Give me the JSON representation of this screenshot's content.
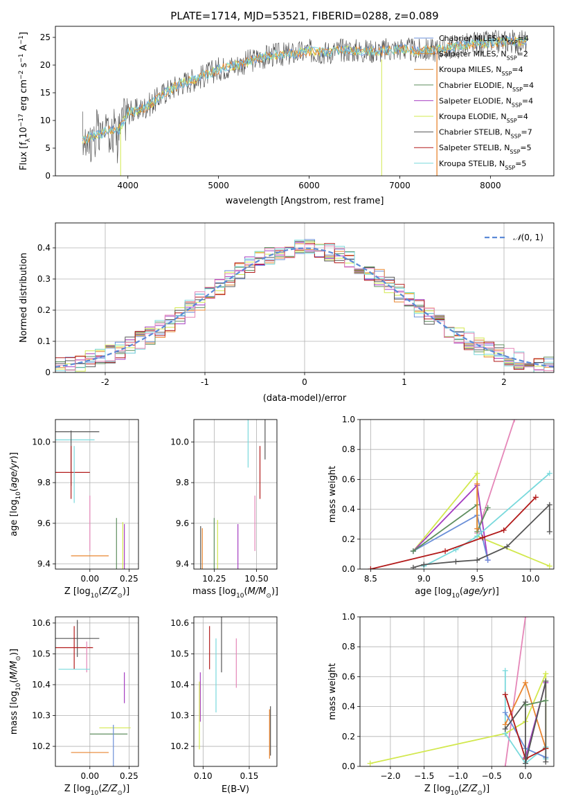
{
  "title": "PLATE=1714, MJD=53521, FIBERID=0288, z=0.089",
  "palette": {
    "chabrier_miles": "#6a8fd8",
    "salpeter_miles": "#e8852f",
    "kroupa_miles": "#d9862c",
    "chabrier_elodie": "#5e8e5e",
    "salpeter_elodie": "#a43cc0",
    "kroupa_elodie": "#d2e84d",
    "chabrier_stelib": "#555555",
    "salpeter_stelib": "#b21a1a",
    "kroupa_stelib": "#79d9dc",
    "pink": "#e586b8",
    "orange": "#e8852f",
    "gaussian": "#5b8ad6"
  },
  "legend": [
    {
      "text": "Chabrier MILES, N_SSP=4",
      "main": "Chabrier MILES, N",
      "sub": "SSP",
      "suffix": "=4",
      "color": "#6a8fd8"
    },
    {
      "text": "Salpeter MILES, N_SSP=2",
      "main": "Salpeter MILES, N",
      "sub": "SSP",
      "suffix": "=2",
      "color": "#e8852f"
    },
    {
      "text": "Kroupa MILES, N_SSP=4",
      "main": "Kroupa MILES, N",
      "sub": "SSP",
      "suffix": "=4",
      "color": "#d9862c"
    },
    {
      "text": "Chabrier ELODIE, N_SSP=4",
      "main": "Chabrier ELODIE, N",
      "sub": "SSP",
      "suffix": "=4",
      "color": "#5e8e5e"
    },
    {
      "text": "Salpeter ELODIE, N_SSP=4",
      "main": "Salpeter ELODIE, N",
      "sub": "SSP",
      "suffix": "=4",
      "color": "#a43cc0"
    },
    {
      "text": "Kroupa ELODIE, N_SSP=4",
      "main": "Kroupa ELODIE, N",
      "sub": "SSP",
      "suffix": "=4",
      "color": "#d2e84d"
    },
    {
      "text": "Chabrier STELIB, N_SSP=7",
      "main": "Chabrier STELIB, N",
      "sub": "SSP",
      "suffix": "=7",
      "color": "#555555"
    },
    {
      "text": "Salpeter STELIB, N_SSP=5",
      "main": "Salpeter STELIB, N",
      "sub": "SSP",
      "suffix": "=5",
      "color": "#b21a1a"
    },
    {
      "text": "Kroupa STELIB, N_SSP=5",
      "main": "Kroupa STELIB, N",
      "sub": "SSP",
      "suffix": "=5",
      "color": "#79d9dc"
    }
  ],
  "chart_data": [
    {
      "id": "spectrum",
      "type": "line",
      "title": "PLATE=1714, MJD=53521, FIBERID=0288, z=0.089",
      "xlabel": "wavelength [Angstrom, rest frame]",
      "ylabel": "Flux [f_λ 10^-17 erg cm^-2 s^-1 A^-1]",
      "xlim": [
        3200,
        8700
      ],
      "ylim": [
        0,
        27
      ],
      "xticks": [
        4000,
        5000,
        6000,
        7000,
        8000
      ],
      "yticks": [
        0,
        5,
        10,
        15,
        20,
        25
      ],
      "grid": false,
      "legend_position": "upper right",
      "continuum": [
        [
          3500,
          6.5
        ],
        [
          3700,
          7.5
        ],
        [
          3800,
          8.5
        ],
        [
          3900,
          8.2
        ],
        [
          4000,
          11.5
        ],
        [
          4100,
          11.8
        ],
        [
          4200,
          12.5
        ],
        [
          4300,
          13.5
        ],
        [
          4400,
          15.0
        ],
        [
          4600,
          16.8
        ],
        [
          4800,
          17.8
        ],
        [
          5000,
          19.3
        ],
        [
          5200,
          20.0
        ],
        [
          5400,
          21.0
        ],
        [
          5600,
          21.8
        ],
        [
          5800,
          22.0
        ],
        [
          6000,
          22.5
        ],
        [
          6200,
          22.3
        ],
        [
          6400,
          22.8
        ],
        [
          6600,
          22.5
        ],
        [
          6800,
          22.6
        ],
        [
          7000,
          23.0
        ],
        [
          7200,
          22.5
        ],
        [
          7400,
          22.8
        ],
        [
          7600,
          23.3
        ],
        [
          7800,
          23.8
        ],
        [
          8000,
          24.0
        ],
        [
          8200,
          24.3
        ],
        [
          8400,
          24.2
        ]
      ]
    },
    {
      "id": "residuals",
      "type": "histogram",
      "xlabel": "(data-model)/error",
      "ylabel": "Normed distribution",
      "xlim": [
        -2.5,
        2.5
      ],
      "ylim": [
        0,
        0.48
      ],
      "xticks": [
        -2,
        -1,
        0,
        1,
        2
      ],
      "yticks": [
        0.0,
        0.1,
        0.2,
        0.3,
        0.4
      ],
      "grid": true,
      "legend": "𝒩(0,1)",
      "legend_position": "upper right",
      "bin_width": 0.1
    },
    {
      "id": "age_vs_Z",
      "type": "scatter",
      "xlabel": "Z [log10(Z/Z☉)]",
      "ylabel": "age [log10(age/yr)]",
      "xlim": [
        -0.22,
        0.31
      ],
      "ylim": [
        9.375,
        10.11
      ],
      "xticks": [
        0.0,
        0.25
      ],
      "xticklabels": [
        "0.00",
        "0.25"
      ],
      "yticks": [
        9.4,
        9.6,
        9.8,
        10.0
      ],
      "yticklabels": [
        "9.4",
        "9.6",
        "9.8",
        "10.0"
      ],
      "grid": true,
      "points": [
        {
          "x": -0.08,
          "xe": 0.14,
          "y": 10.05,
          "ye": 0.0,
          "c": "#555555"
        },
        {
          "x": -0.1,
          "xe": 0.13,
          "y": 10.01,
          "ye": 0.0,
          "c": "#79d9dc"
        },
        {
          "x": -0.12,
          "xe": 0.0,
          "y": 9.92,
          "ye": 0.0,
          "c": "#555555"
        },
        {
          "x": -0.12,
          "xe": 0.12,
          "y": 9.85,
          "ye": 0.13,
          "c": "#b21a1a"
        },
        {
          "x": -0.1,
          "xe": 0.0,
          "y": 9.84,
          "ye": 0.14,
          "c": "#79d9dc"
        },
        {
          "x": 0.0,
          "xe": 0.0,
          "y": 9.6,
          "ye": 0.0,
          "c": "#e586b8"
        },
        {
          "x": 0.0,
          "xe": 0.12,
          "y": 9.44,
          "ye": 0.0,
          "c": "#e8852f"
        },
        {
          "x": 0.17,
          "xe": 0.0,
          "y": 9.49,
          "ye": 0.0,
          "c": "#5e8e5e"
        },
        {
          "x": 0.21,
          "xe": 0.0,
          "y": 9.47,
          "ye": 0.0,
          "c": "#d2e84d"
        },
        {
          "x": 0.22,
          "xe": 0.0,
          "y": 9.46,
          "ye": 0.0,
          "c": "#a43cc0"
        }
      ]
    },
    {
      "id": "age_vs_mass",
      "type": "scatter",
      "xlabel": "mass [log10(M/M☉)]",
      "ylabel": "",
      "xlim": [
        10.13,
        10.62
      ],
      "ylim": [
        9.375,
        10.11
      ],
      "xticks": [
        10.25,
        10.5
      ],
      "xticklabels": [
        "10.25",
        "10.50"
      ],
      "yticks": [
        9.4,
        9.6,
        9.8,
        10.0
      ],
      "yticklabels": [
        "9.4",
        "9.6",
        "9.8",
        "10.0"
      ],
      "grid": true,
      "points": [
        {
          "x": 10.55,
          "xe": 0.0,
          "y": 10.05,
          "ye": 0.0,
          "c": "#555555"
        },
        {
          "x": 10.45,
          "xe": 0.0,
          "y": 10.01,
          "ye": 0.0,
          "c": "#79d9dc"
        },
        {
          "x": 10.52,
          "xe": 0.0,
          "y": 9.85,
          "ye": 0.13,
          "c": "#b21a1a"
        },
        {
          "x": 10.49,
          "xe": 0.0,
          "y": 9.6,
          "ye": 0.0,
          "c": "#e586b8"
        },
        {
          "x": 10.18,
          "xe": 0.0,
          "y": 9.44,
          "ye": 0.0,
          "c": "#e8852f"
        },
        {
          "x": 10.25,
          "xe": 0.0,
          "y": 9.49,
          "ye": 0.0,
          "c": "#5e8e5e"
        },
        {
          "x": 10.27,
          "xe": 0.0,
          "y": 9.48,
          "ye": 0.0,
          "c": "#d2e84d"
        },
        {
          "x": 10.39,
          "xe": 0.0,
          "y": 9.46,
          "ye": 0.0,
          "c": "#a43cc0"
        },
        {
          "x": 10.17,
          "xe": 0.0,
          "y": 9.45,
          "ye": 0.0,
          "c": "#555555"
        }
      ]
    },
    {
      "id": "massweight_vs_age",
      "type": "line",
      "xlabel": "age [log10(age/yr)]",
      "ylabel": "mass weight",
      "xlim": [
        8.4,
        10.22
      ],
      "ylim": [
        0,
        1
      ],
      "xticks": [
        8.5,
        9.0,
        9.5,
        10.0
      ],
      "xticklabels": [
        "8.5",
        "9.0",
        "9.5",
        "10.0"
      ],
      "yticks": [
        0,
        0.2,
        0.4,
        0.6,
        0.8,
        1.0
      ],
      "yticklabels": [
        "0.0",
        "0.2",
        "0.4",
        "0.6",
        "0.8",
        "1.0"
      ],
      "grid": true,
      "series": [
        {
          "c": "#e586b8",
          "pts": [
            [
              9.5,
              0.24
            ],
            [
              9.85,
              1.0
            ]
          ]
        },
        {
          "c": "#d2e84d",
          "pts": [
            [
              8.9,
              0.12
            ],
            [
              9.5,
              0.64
            ],
            [
              9.5,
              0.22
            ],
            [
              10.18,
              0.02
            ]
          ]
        },
        {
          "c": "#a43cc0",
          "pts": [
            [
              8.9,
              0.12
            ],
            [
              9.5,
              0.56
            ],
            [
              9.6,
              0.06
            ]
          ]
        },
        {
          "c": "#6a8fd8",
          "pts": [
            [
              8.9,
              0.12
            ],
            [
              9.5,
              0.36
            ],
            [
              9.6,
              0.06
            ]
          ]
        },
        {
          "c": "#5e8e5e",
          "pts": [
            [
              8.9,
              0.12
            ],
            [
              9.5,
              0.43
            ],
            [
              9.5,
              0.25
            ],
            [
              9.6,
              0.41
            ]
          ]
        },
        {
          "c": "#e8852f",
          "pts": [
            [
              9.5,
              0.27
            ],
            [
              9.5,
              0.57
            ]
          ]
        },
        {
          "c": "#79d9dc",
          "pts": [
            [
              9.0,
              0.02
            ],
            [
              9.3,
              0.13
            ],
            [
              9.5,
              0.22
            ],
            [
              10.18,
              0.64
            ]
          ]
        },
        {
          "c": "#b21a1a",
          "pts": [
            [
              8.5,
              0.0
            ],
            [
              9.2,
              0.12
            ],
            [
              9.55,
              0.21
            ],
            [
              9.75,
              0.26
            ],
            [
              10.05,
              0.48
            ]
          ]
        },
        {
          "c": "#555555",
          "pts": [
            [
              8.9,
              0.01
            ],
            [
              9.0,
              0.03
            ],
            [
              9.3,
              0.05
            ],
            [
              9.5,
              0.06
            ],
            [
              9.78,
              0.15
            ],
            [
              10.18,
              0.43
            ],
            [
              10.18,
              0.25
            ]
          ]
        }
      ]
    },
    {
      "id": "mass_vs_Z",
      "type": "scatter",
      "xlabel": "Z [log10(Z/Z☉)]",
      "ylabel": "mass [log10(M/M☉)]",
      "xlim": [
        -0.22,
        0.31
      ],
      "ylim": [
        10.135,
        10.62
      ],
      "xticks": [
        0.0,
        0.25
      ],
      "xticklabels": [
        "0.00",
        "0.25"
      ],
      "yticks": [
        10.2,
        10.3,
        10.4,
        10.5,
        10.6
      ],
      "yticklabels": [
        "10.2",
        "10.3",
        "10.4",
        "10.5",
        "10.6"
      ],
      "grid": true,
      "points": [
        {
          "x": -0.08,
          "xe": 0.14,
          "y": 10.55,
          "ye": 0.06,
          "c": "#555555"
        },
        {
          "x": -0.1,
          "xe": 0.12,
          "y": 10.52,
          "ye": 0.07,
          "c": "#b21a1a"
        },
        {
          "x": -0.02,
          "xe": 0.0,
          "y": 10.49,
          "ye": 0.05,
          "c": "#e586b8"
        },
        {
          "x": -0.1,
          "xe": 0.1,
          "y": 10.45,
          "ye": 0.0,
          "c": "#79d9dc"
        },
        {
          "x": 0.22,
          "xe": 0.0,
          "y": 10.39,
          "ye": 0.05,
          "c": "#a43cc0"
        },
        {
          "x": 0.16,
          "xe": 0.1,
          "y": 10.26,
          "ye": 0.0,
          "c": "#d2e84d"
        },
        {
          "x": 0.12,
          "xe": 0.12,
          "y": 10.24,
          "ye": 0.0,
          "c": "#5e8e5e"
        },
        {
          "x": 0.0,
          "xe": 0.12,
          "y": 10.18,
          "ye": 0.0,
          "c": "#e8852f"
        },
        {
          "x": 0.15,
          "xe": 0.0,
          "y": 10.18,
          "ye": 0.0,
          "c": "#6a8fd8"
        }
      ]
    },
    {
      "id": "mass_vs_ebv",
      "type": "scatter",
      "xlabel": "E(B-V)",
      "ylabel": "",
      "xlim": [
        0.09,
        0.18
      ],
      "ylim": [
        10.135,
        10.62
      ],
      "xticks": [
        0.1,
        0.15
      ],
      "xticklabels": [
        "0.10",
        "0.15"
      ],
      "yticks": [
        10.2,
        10.3,
        10.4,
        10.5,
        10.6
      ],
      "yticklabels": [
        "10.2",
        "10.3",
        "10.4",
        "10.5",
        "10.6"
      ],
      "grid": true,
      "points": [
        {
          "x": 0.107,
          "y": 10.52,
          "ye": 0.07,
          "c": "#b21a1a"
        },
        {
          "x": 0.12,
          "y": 10.53,
          "ye": 0.09,
          "c": "#555555"
        },
        {
          "x": 0.114,
          "y": 10.43,
          "ye": 0.12,
          "c": "#79d9dc"
        },
        {
          "x": 0.136,
          "y": 10.47,
          "ye": 0.08,
          "c": "#e586b8"
        },
        {
          "x": 0.097,
          "y": 10.36,
          "ye": 0.08,
          "c": "#a43cc0"
        },
        {
          "x": 0.096,
          "y": 10.3,
          "ye": 0.11,
          "c": "#d2e84d"
        },
        {
          "x": 0.172,
          "y": 10.24,
          "ye": 0.08,
          "c": "#e8852f"
        },
        {
          "x": 0.173,
          "y": 10.25,
          "ye": 0.08,
          "c": "#555555"
        }
      ]
    },
    {
      "id": "massweight_vs_Z",
      "type": "line",
      "xlabel": "Z [log10(Z/Z☉)]",
      "ylabel": "mass weight",
      "xlim": [
        -2.45,
        0.42
      ],
      "ylim": [
        0,
        1
      ],
      "xticks": [
        -2.0,
        -1.5,
        -1.0,
        -0.5,
        0.0
      ],
      "xticklabels": [
        "−2.0",
        "−1.5",
        "−1.0",
        "−0.5",
        "0.0"
      ],
      "yticks": [
        0,
        0.2,
        0.4,
        0.6,
        0.8,
        1.0
      ],
      "yticklabels": [
        "0.0",
        "0.2",
        "0.4",
        "0.6",
        "0.8",
        "1.0"
      ],
      "grid": true,
      "series": [
        {
          "c": "#e586b8",
          "pts": [
            [
              -0.3,
              0.0
            ],
            [
              0.0,
              1.0
            ]
          ]
        },
        {
          "c": "#d2e84d",
          "pts": [
            [
              -2.3,
              0.02
            ],
            [
              -0.3,
              0.22
            ],
            [
              0.0,
              0.3
            ],
            [
              0.3,
              0.62
            ],
            [
              0.3,
              0.12
            ]
          ]
        },
        {
          "c": "#79d9dc",
          "pts": [
            [
              -0.3,
              0.64
            ],
            [
              -0.3,
              0.22
            ],
            [
              0.0,
              0.02
            ],
            [
              0.3,
              0.13
            ],
            [
              0.3,
              0.05
            ]
          ]
        },
        {
          "c": "#e8852f",
          "pts": [
            [
              -0.3,
              0.28
            ],
            [
              0.0,
              0.56
            ],
            [
              0.3,
              0.12
            ]
          ]
        },
        {
          "c": "#a43cc0",
          "pts": [
            [
              0.0,
              0.06
            ],
            [
              0.3,
              0.56
            ]
          ]
        },
        {
          "c": "#6a8fd8",
          "pts": [
            [
              -0.3,
              0.36
            ],
            [
              0.0,
              0.12
            ],
            [
              0.3,
              0.06
            ]
          ]
        },
        {
          "c": "#b21a1a",
          "pts": [
            [
              -0.3,
              0.48
            ],
            [
              0.0,
              0.05
            ],
            [
              0.3,
              0.12
            ]
          ]
        },
        {
          "c": "#555555",
          "pts": [
            [
              -0.3,
              0.25
            ],
            [
              0.0,
              0.43
            ],
            [
              0.0,
              0.02
            ],
            [
              0.3,
              0.57
            ],
            [
              0.3,
              0.03
            ]
          ]
        },
        {
          "c": "#5e8e5e",
          "pts": [
            [
              0.0,
              0.41
            ],
            [
              0.3,
              0.44
            ]
          ]
        }
      ]
    }
  ]
}
